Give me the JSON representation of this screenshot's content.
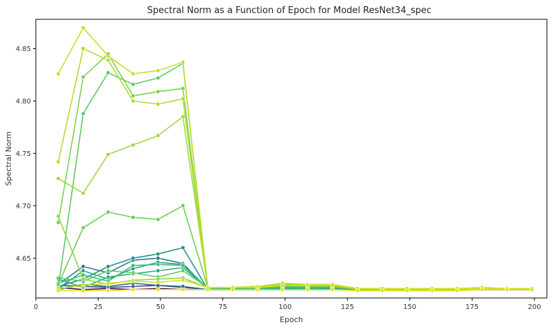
{
  "chart_data": {
    "type": "line",
    "title": "Spectral Norm as a Function of Epoch for Model ResNet34_spec",
    "xlabel": "Epoch",
    "ylabel": "Spectral Norm",
    "xlim": [
      0,
      205
    ],
    "ylim": [
      4.612,
      4.878
    ],
    "x_ticks": [
      "0",
      "25",
      "50",
      "75",
      "100",
      "125",
      "150",
      "175",
      "200"
    ],
    "y_ticks": [
      "4.65",
      "4.70",
      "4.75",
      "4.80",
      "4.85"
    ],
    "grid": false,
    "legend": "none",
    "x": [
      9,
      19,
      29,
      39,
      49,
      59,
      69,
      79,
      89,
      99,
      109,
      119,
      129,
      139,
      149,
      159,
      169,
      179,
      189,
      199
    ],
    "series": [
      {
        "color": "#440154",
        "values": [
          4.622,
          4.62,
          4.621,
          4.62,
          4.621,
          4.62,
          4.62,
          4.62,
          4.62,
          4.62,
          4.62,
          4.62,
          4.62,
          4.62,
          4.62,
          4.62,
          4.62,
          4.62,
          4.62,
          4.62
        ]
      },
      {
        "color": "#3b528b",
        "values": [
          4.624,
          4.623,
          4.622,
          4.623,
          4.624,
          4.622,
          4.62,
          4.62,
          4.62,
          4.62,
          4.62,
          4.62,
          4.62,
          4.62,
          4.62,
          4.62,
          4.62,
          4.62,
          4.62,
          4.62
        ]
      },
      {
        "color": "#31688e",
        "values": [
          4.62,
          4.625,
          4.623,
          4.626,
          4.624,
          4.623,
          4.62,
          4.62,
          4.62,
          4.62,
          4.62,
          4.62,
          4.62,
          4.62,
          4.62,
          4.62,
          4.62,
          4.62,
          4.62,
          4.62
        ]
      },
      {
        "color": "#2a7b8e",
        "values": [
          4.625,
          4.642,
          4.636,
          4.648,
          4.65,
          4.645,
          4.62,
          4.62,
          4.62,
          4.62,
          4.62,
          4.62,
          4.62,
          4.62,
          4.62,
          4.62,
          4.62,
          4.62,
          4.62,
          4.62
        ]
      },
      {
        "color": "#21918c",
        "values": [
          4.623,
          4.63,
          4.642,
          4.65,
          4.654,
          4.66,
          4.62,
          4.62,
          4.62,
          4.62,
          4.62,
          4.62,
          4.62,
          4.62,
          4.62,
          4.62,
          4.62,
          4.62,
          4.62,
          4.62
        ]
      },
      {
        "color": "#1fa088",
        "values": [
          4.621,
          4.638,
          4.63,
          4.64,
          4.646,
          4.644,
          4.621,
          4.621,
          4.621,
          4.621,
          4.621,
          4.621,
          4.62,
          4.62,
          4.62,
          4.62,
          4.62,
          4.62,
          4.62,
          4.62
        ]
      },
      {
        "color": "#28ae80",
        "values": [
          4.63,
          4.622,
          4.632,
          4.635,
          4.638,
          4.641,
          4.621,
          4.621,
          4.621,
          4.622,
          4.621,
          4.622,
          4.62,
          4.62,
          4.62,
          4.62,
          4.62,
          4.621,
          4.62,
          4.62
        ]
      },
      {
        "color": "#3fbc73",
        "values": [
          4.626,
          4.634,
          4.628,
          4.643,
          4.644,
          4.643,
          4.621,
          4.621,
          4.621,
          4.622,
          4.622,
          4.622,
          4.62,
          4.62,
          4.62,
          4.62,
          4.62,
          4.621,
          4.62,
          4.62
        ]
      },
      {
        "color": "#5ec962",
        "values": [
          4.631,
          4.628,
          4.638,
          4.636,
          4.632,
          4.638,
          4.622,
          4.622,
          4.622,
          4.623,
          4.623,
          4.623,
          4.62,
          4.62,
          4.62,
          4.62,
          4.62,
          4.621,
          4.621,
          4.62
        ]
      },
      {
        "color": "#6ccd5a",
        "values": [
          4.625,
          4.679,
          4.694,
          4.689,
          4.687,
          4.7,
          4.622,
          4.622,
          4.622,
          4.624,
          4.623,
          4.623,
          4.62,
          4.62,
          4.62,
          4.62,
          4.62,
          4.621,
          4.621,
          4.621
        ]
      },
      {
        "color": "#5ec962",
        "values": [
          4.622,
          4.788,
          4.827,
          4.816,
          4.822,
          4.836,
          4.622,
          4.622,
          4.622,
          4.624,
          4.624,
          4.624,
          4.62,
          4.62,
          4.62,
          4.62,
          4.62,
          4.621,
          4.621,
          4.621
        ]
      },
      {
        "color": "#7ad151",
        "values": [
          4.684,
          4.823,
          4.845,
          4.805,
          4.809,
          4.812,
          4.622,
          4.622,
          4.623,
          4.625,
          4.625,
          4.624,
          4.62,
          4.62,
          4.62,
          4.62,
          4.62,
          4.621,
          4.621,
          4.621
        ]
      },
      {
        "color": "#8bd646",
        "values": [
          4.69,
          4.63,
          4.625,
          4.629,
          4.63,
          4.631,
          4.622,
          4.622,
          4.623,
          4.625,
          4.625,
          4.625,
          4.621,
          4.62,
          4.62,
          4.62,
          4.62,
          4.621,
          4.621,
          4.621
        ]
      },
      {
        "color": "#9dd93b",
        "values": [
          4.726,
          4.712,
          4.749,
          4.758,
          4.767,
          4.785,
          4.622,
          4.622,
          4.623,
          4.625,
          4.625,
          4.625,
          4.621,
          4.62,
          4.62,
          4.62,
          4.62,
          4.621,
          4.621,
          4.621
        ]
      },
      {
        "color": "#addc30",
        "values": [
          4.742,
          4.85,
          4.839,
          4.8,
          4.797,
          4.802,
          4.622,
          4.622,
          4.623,
          4.626,
          4.625,
          4.625,
          4.621,
          4.621,
          4.62,
          4.62,
          4.62,
          4.621,
          4.621,
          4.621
        ]
      },
      {
        "color": "#c2df23",
        "values": [
          4.826,
          4.87,
          4.843,
          4.826,
          4.829,
          4.837,
          4.622,
          4.622,
          4.623,
          4.626,
          4.625,
          4.625,
          4.621,
          4.621,
          4.621,
          4.621,
          4.621,
          4.622,
          4.621,
          4.621
        ]
      },
      {
        "color": "#d2e21b",
        "values": [
          4.621,
          4.624,
          4.626,
          4.628,
          4.627,
          4.629,
          4.622,
          4.622,
          4.622,
          4.624,
          4.624,
          4.624,
          4.621,
          4.621,
          4.621,
          4.621,
          4.621,
          4.621,
          4.621,
          4.621
        ]
      },
      {
        "color": "#e2e418",
        "values": [
          4.619,
          4.619,
          4.619,
          4.62,
          4.62,
          4.62,
          4.62,
          4.62,
          4.62,
          4.62,
          4.62,
          4.62,
          4.619,
          4.619,
          4.619,
          4.619,
          4.619,
          4.62,
          4.62,
          4.62
        ]
      }
    ]
  }
}
